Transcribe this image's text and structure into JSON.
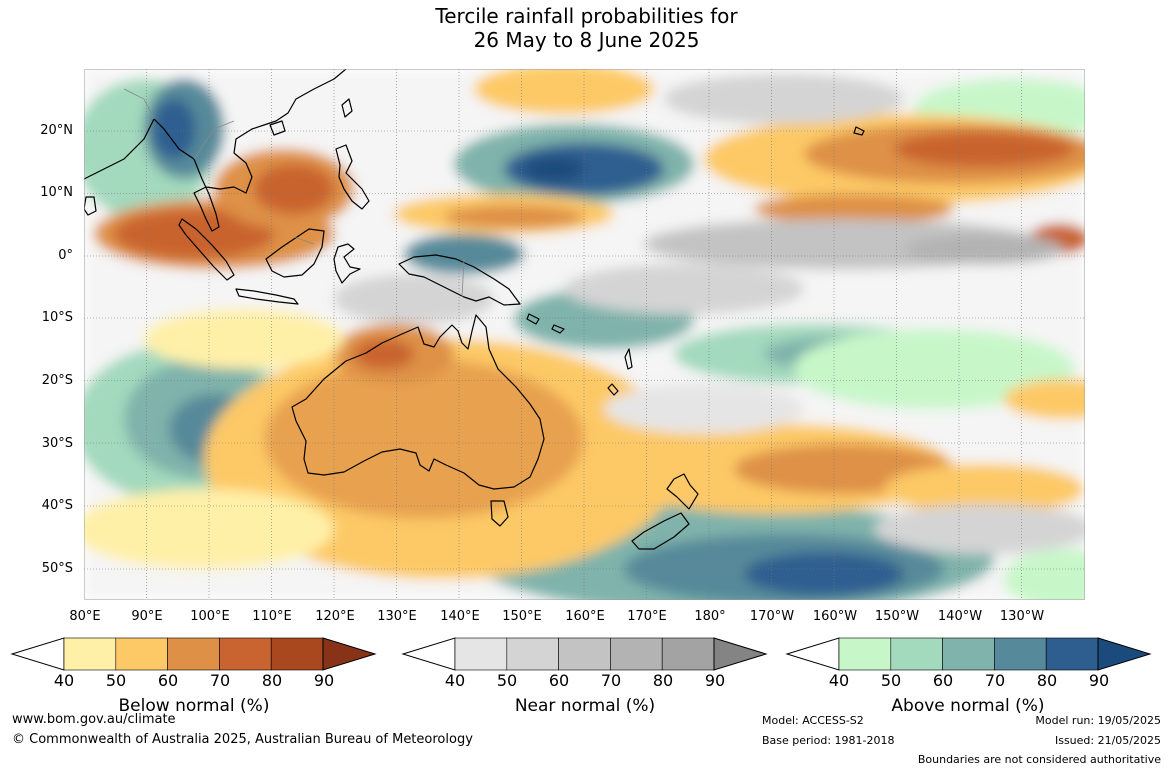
{
  "title_line1": "Tercile rainfall probabilities for",
  "title_line2": "26 May to 8 June 2025",
  "lat_labels": [
    "20°N",
    "10°N",
    "0°",
    "10°S",
    "20°S",
    "30°S",
    "40°S",
    "50°S"
  ],
  "lon_labels": [
    "80°E",
    "90°E",
    "100°E",
    "110°E",
    "120°E",
    "130°E",
    "140°E",
    "150°E",
    "160°E",
    "170°E",
    "180°",
    "170°W",
    "160°W",
    "150°W",
    "140°W",
    "130°W"
  ],
  "legend": {
    "below": {
      "label": "Below normal (%)",
      "ticks": [
        "40",
        "50",
        "60",
        "70",
        "80",
        "90"
      ],
      "colors": [
        "#fff0a8",
        "#fdc966",
        "#de9146",
        "#c9632f",
        "#a9481f",
        "#883317"
      ]
    },
    "near": {
      "label": "Near normal (%)",
      "ticks": [
        "40",
        "50",
        "60",
        "70",
        "80",
        "90"
      ],
      "colors": [
        "#e5e5e5",
        "#d4d4d4",
        "#c3c3c3",
        "#b3b3b3",
        "#a3a3a3",
        "#848484"
      ]
    },
    "above": {
      "label": "Above normal (%)",
      "ticks": [
        "40",
        "50",
        "60",
        "70",
        "80",
        "90"
      ],
      "colors": [
        "#c7f7c9",
        "#a3d9bd",
        "#7fb3ab",
        "#568a9a",
        "#2e5e90",
        "#1b4b7c"
      ]
    }
  },
  "footer": {
    "website": "www.bom.gov.au/climate",
    "copyright": "© Commonwealth of Australia 2025, Australian Bureau of Meteorology",
    "model": "Model: ACCESS-S2",
    "base_period": "Base period: 1981-2018",
    "model_run": "Model run: 19/05/2025",
    "issued": "Issued: 21/05/2025",
    "disclaimer": "Boundaries are not considered authoritative"
  }
}
